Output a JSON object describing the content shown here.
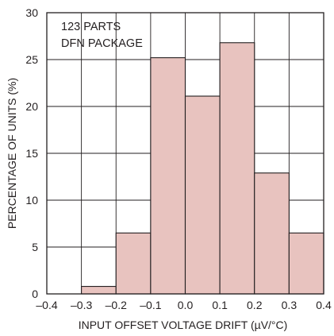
{
  "chart_data": {
    "type": "bar",
    "subtype": "histogram",
    "bin_edges": [
      -0.4,
      -0.3,
      -0.2,
      -0.1,
      0.0,
      0.1,
      0.2,
      0.3,
      0.4
    ],
    "bins": [
      {
        "from": -0.3,
        "to": -0.2,
        "value": 0.8
      },
      {
        "from": -0.2,
        "to": -0.1,
        "value": 6.5
      },
      {
        "from": -0.1,
        "to": 0.0,
        "value": 25.2
      },
      {
        "from": 0.0,
        "to": 0.1,
        "value": 21.1
      },
      {
        "from": 0.1,
        "to": 0.2,
        "value": 26.8
      },
      {
        "from": 0.2,
        "to": 0.3,
        "value": 12.9
      },
      {
        "from": 0.3,
        "to": 0.4,
        "value": 6.5
      }
    ],
    "xlabel": "INPUT OFFSET VOLTAGE DRIFT (µV/°C)",
    "ylabel": "PERCENTAGE OF UNITS (%)",
    "xlim": [
      -0.4,
      0.4
    ],
    "ylim": [
      0,
      30
    ],
    "x_ticks": [
      "–0.4",
      "–0.3",
      "–0.2",
      "–0.1",
      "0.0",
      "0.1",
      "0.2",
      "0.3",
      "0.4"
    ],
    "y_ticks": [
      "0",
      "5",
      "10",
      "15",
      "20",
      "25",
      "30"
    ],
    "annotation": [
      "123 PARTS",
      "DFN PACKAGE"
    ],
    "grid": true,
    "bar_color": "#e8c3bf",
    "edge_color": "#231f20"
  }
}
